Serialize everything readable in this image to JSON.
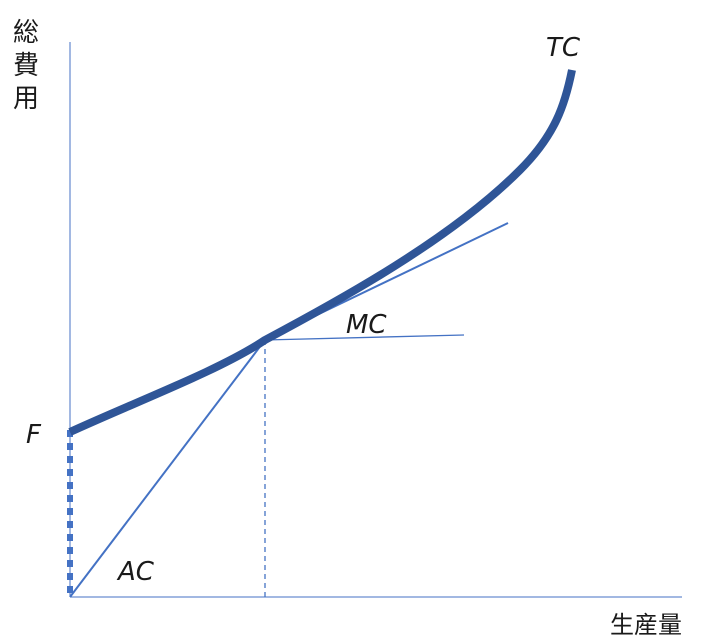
{
  "y_axis_label": [
    "総",
    "費",
    "用"
  ],
  "x_axis_label": "生産量",
  "curve_labels": {
    "tc": "TC",
    "mc": "MC",
    "ac": "AC",
    "f": "F"
  },
  "colors": {
    "tc_curve": "#2f5597",
    "lines": "#4472c4",
    "f_marker": "#4472c4",
    "axis": "#4472c4",
    "text": "#1a1a1a"
  }
}
